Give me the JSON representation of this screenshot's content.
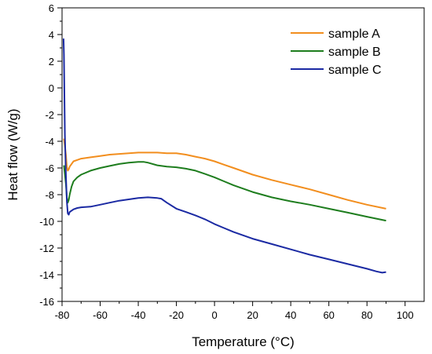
{
  "chart_data": {
    "type": "line",
    "title": "",
    "xlabel": "Temperature (°C)",
    "ylabel": "Heat flow (W/g)",
    "xlim": [
      -80,
      110
    ],
    "ylim": [
      -16,
      6
    ],
    "xticks": [
      -80,
      -60,
      -40,
      -20,
      0,
      20,
      40,
      60,
      80,
      100
    ],
    "yticks": [
      6,
      4,
      2,
      0,
      -2,
      -4,
      -6,
      -8,
      -10,
      -12,
      -14,
      -16
    ],
    "grid": false,
    "legend_position": "top-right",
    "series": [
      {
        "name": "sample A",
        "color": "#f28e1e",
        "x": [
          -79,
          -78,
          -77.5,
          -77,
          -76.5,
          -76,
          -75,
          -74,
          -72,
          -70,
          -65,
          -60,
          -55,
          -50,
          -45,
          -40,
          -35,
          -30,
          -25,
          -20,
          -15,
          -10,
          -5,
          0,
          5,
          10,
          20,
          30,
          40,
          50,
          60,
          70,
          80,
          90
        ],
        "y": [
          -3.8,
          -5.0,
          -5.9,
          -6.2,
          -6.1,
          -5.9,
          -5.7,
          -5.5,
          -5.4,
          -5.3,
          -5.2,
          -5.1,
          -5.0,
          -4.95,
          -4.9,
          -4.85,
          -4.85,
          -4.85,
          -4.9,
          -4.9,
          -5.0,
          -5.15,
          -5.3,
          -5.5,
          -5.75,
          -6.0,
          -6.5,
          -6.9,
          -7.25,
          -7.6,
          -8.0,
          -8.4,
          -8.75,
          -9.05
        ]
      },
      {
        "name": "sample B",
        "color": "#1e7d1e",
        "x": [
          -79,
          -78,
          -77.5,
          -77,
          -76.5,
          -76,
          -75,
          -74,
          -72,
          -70,
          -65,
          -60,
          -55,
          -50,
          -45,
          -40,
          -37,
          -35,
          -30,
          -25,
          -20,
          -15,
          -10,
          -5,
          0,
          5,
          10,
          20,
          30,
          40,
          50,
          60,
          70,
          80,
          90
        ],
        "y": [
          -5.8,
          -7.2,
          -8.2,
          -8.6,
          -8.4,
          -8.0,
          -7.4,
          -7.0,
          -6.7,
          -6.5,
          -6.2,
          -6.0,
          -5.85,
          -5.7,
          -5.6,
          -5.55,
          -5.55,
          -5.6,
          -5.8,
          -5.9,
          -5.95,
          -6.05,
          -6.2,
          -6.45,
          -6.7,
          -7.0,
          -7.3,
          -7.8,
          -8.2,
          -8.5,
          -8.75,
          -9.05,
          -9.35,
          -9.65,
          -9.95
        ]
      },
      {
        "name": "sample C",
        "color": "#1b2aa3",
        "x": [
          -79.2,
          -79.0,
          -78.8,
          -78.5,
          -78,
          -77.5,
          -77,
          -76.5,
          -76,
          -75,
          -74,
          -72,
          -70,
          -65,
          -60,
          -55,
          -50,
          -45,
          -40,
          -35,
          -30,
          -28,
          -25,
          -20,
          -15,
          -10,
          -5,
          0,
          5,
          10,
          20,
          30,
          40,
          50,
          60,
          70,
          80,
          85,
          88,
          90
        ],
        "y": [
          3.7,
          2.5,
          0.0,
          -3.5,
          -6.5,
          -8.5,
          -9.4,
          -9.5,
          -9.3,
          -9.2,
          -9.1,
          -9.0,
          -8.95,
          -8.9,
          -8.75,
          -8.6,
          -8.45,
          -8.35,
          -8.25,
          -8.2,
          -8.25,
          -8.3,
          -8.6,
          -9.05,
          -9.3,
          -9.55,
          -9.85,
          -10.2,
          -10.5,
          -10.8,
          -11.3,
          -11.7,
          -12.1,
          -12.5,
          -12.85,
          -13.2,
          -13.55,
          -13.75,
          -13.85,
          -13.8
        ]
      }
    ]
  }
}
